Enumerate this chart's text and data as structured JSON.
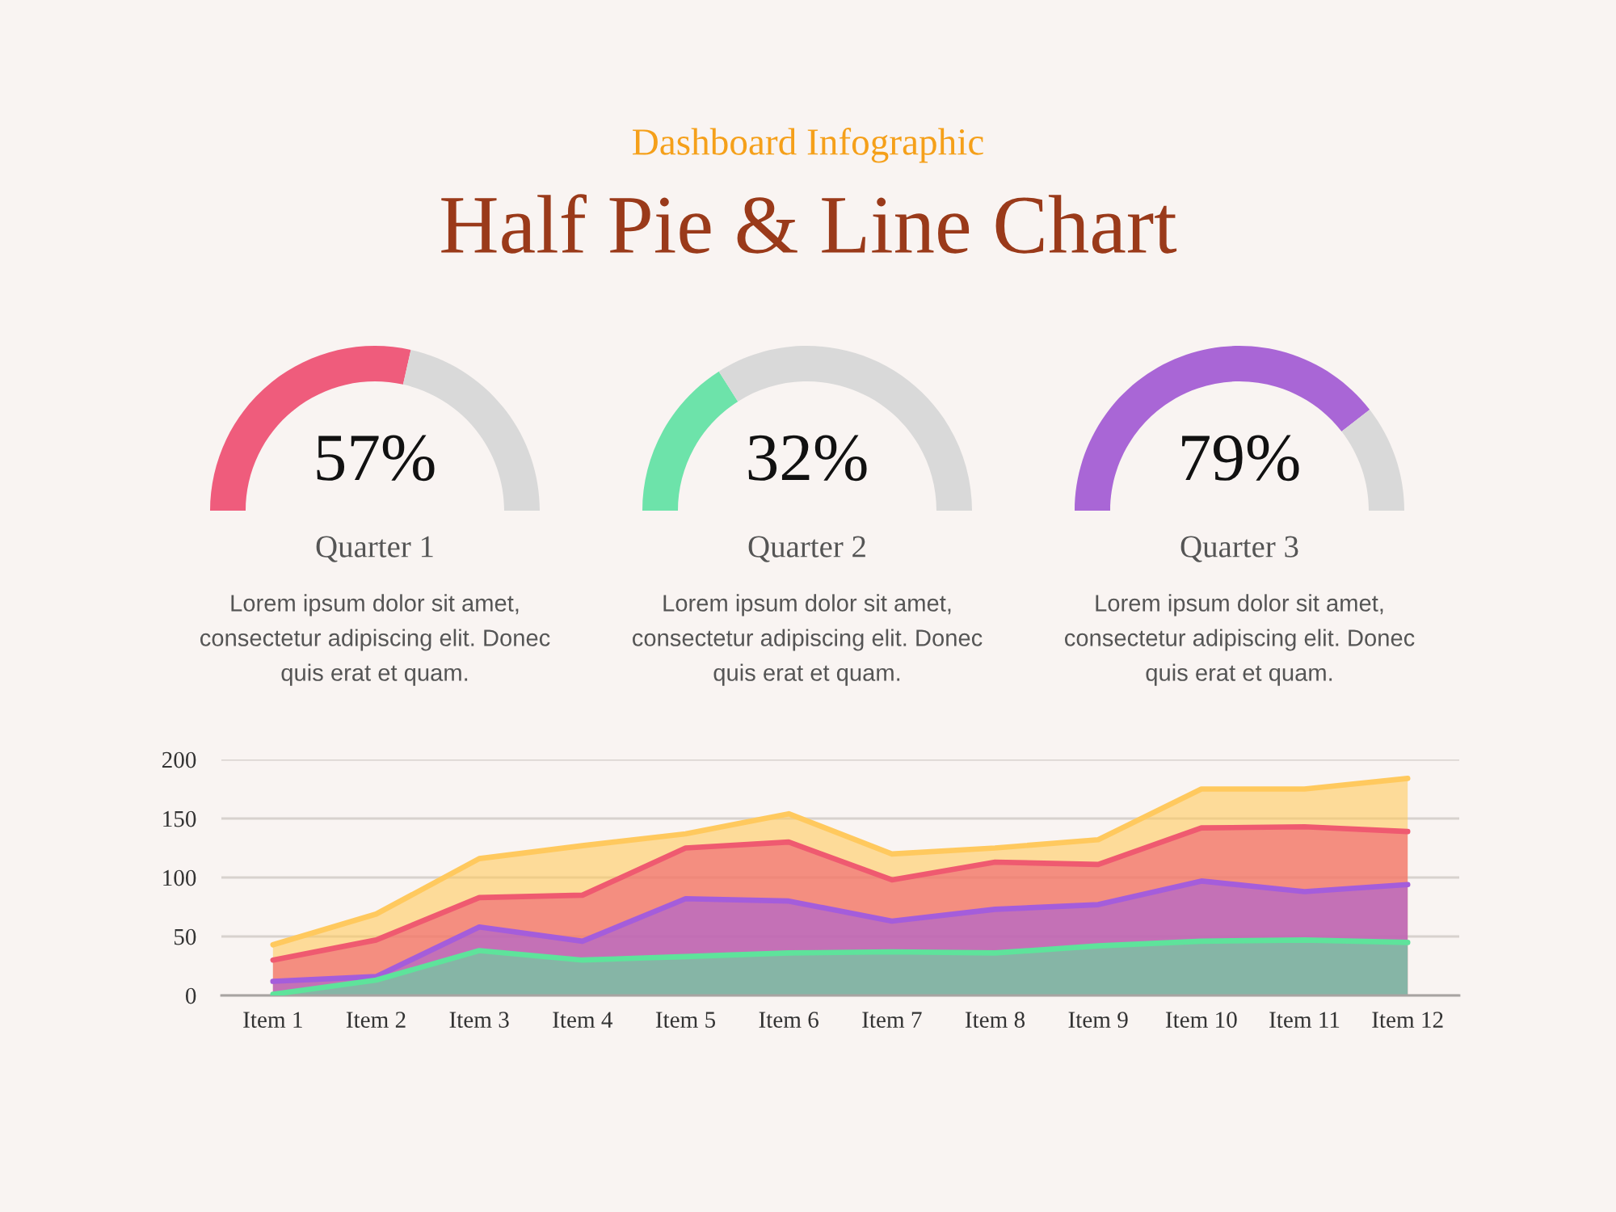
{
  "chart_data": [
    {
      "type": "other",
      "subtitle": "Dashboard Infographic",
      "title": "Half Pie & Line Chart"
    },
    {
      "type": "donut",
      "categories": [
        null,
        null
      ],
      "values": [
        57,
        43
      ],
      "colors": [
        "#ef5c7c",
        "#d9d9d9"
      ],
      "title": "Quarter 1",
      "annotations": [
        "57%",
        "Lorem ipsum dolor sit amet,\nconsectetur adipiscing elit. Donec\nquis erat et quam."
      ]
    },
    {
      "type": "donut",
      "categories": [
        null,
        null
      ],
      "values": [
        32,
        68
      ],
      "colors": [
        "#6de3aa",
        "#d9d9d9"
      ],
      "title": "Quarter 2",
      "annotations": [
        "32%",
        "Lorem ipsum dolor sit amet,\nconsectetur adipiscing elit. Donec\nquis erat et quam."
      ]
    },
    {
      "type": "donut",
      "categories": [
        null,
        null
      ],
      "values": [
        79,
        21
      ],
      "colors": [
        "#a966d6",
        "#d9d9d9"
      ],
      "title": "Quarter 3",
      "annotations": [
        "79%",
        "Lorem ipsum dolor sit amet,\nconsectetur adipiscing elit. Donec\nquis erat et quam."
      ]
    },
    {
      "type": "area",
      "categories": [
        "Item 1",
        "Item 2",
        "Item 3",
        "Item 4",
        "Item 5",
        "Item 6",
        "Item 7",
        "Item 8",
        "Item 9",
        "Item 10",
        "Item 11",
        "Item 12"
      ],
      "series": [
        {
          "color": "#ffc95e",
          "values": [
            43,
            69,
            116,
            127,
            137,
            154,
            120,
            125,
            132,
            175,
            175,
            184
          ]
        },
        {
          "color": "#ef5a70",
          "values": [
            30,
            47,
            83,
            85,
            125,
            130,
            98,
            113,
            111,
            142,
            143,
            139
          ]
        },
        {
          "color": "#a45ddb",
          "values": [
            12,
            16,
            58,
            46,
            82,
            80,
            63,
            73,
            77,
            97,
            88,
            94
          ]
        },
        {
          "color": "#5ee39b",
          "values": [
            1,
            13,
            38,
            30,
            33,
            36,
            37,
            36,
            42,
            46,
            47,
            45
          ]
        }
      ],
      "ylim": [
        0,
        200
      ],
      "yticks": [
        0,
        50,
        100,
        150,
        200
      ],
      "grid": "y"
    }
  ]
}
